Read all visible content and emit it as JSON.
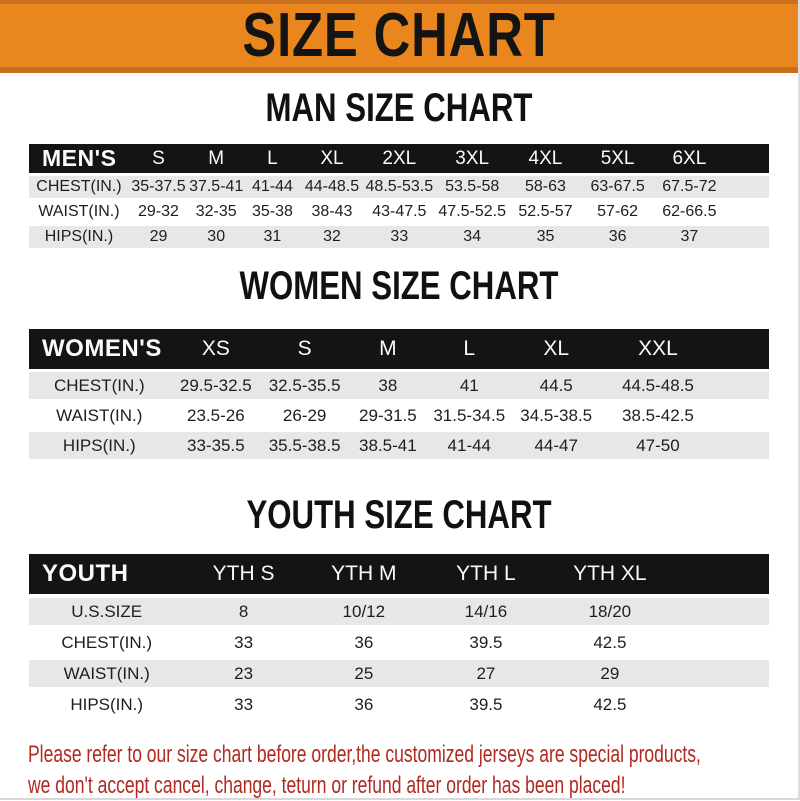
{
  "banner": {
    "title": "SIZE CHART"
  },
  "colors": {
    "banner_bg": "#EA861E",
    "banner_edge": "#C96F1E",
    "header_bar": "#141414",
    "row_gray": "#E7E7E7",
    "footer_red": "#B02A22"
  },
  "sections": [
    {
      "id": "men",
      "heading": "MAN SIZE CHART",
      "table": {
        "header": [
          "MEN'S",
          "S",
          "M",
          "L",
          "XL",
          "2XL",
          "3XL",
          "4XL",
          "5XL",
          "6XL"
        ],
        "rows": [
          [
            "CHEST(IN.)",
            "35-37.5",
            "37.5-41",
            "41-44",
            "44-48.5",
            "48.5-53.5",
            "53.5-58",
            "58-63",
            "63-67.5",
            "67.5-72"
          ],
          [
            "WAIST(IN.)",
            "29-32",
            "32-35",
            "35-38",
            "38-43",
            "43-47.5",
            "47.5-52.5",
            "52.5-57",
            "57-62",
            "62-66.5"
          ],
          [
            "HIPS(IN.)",
            "29",
            "30",
            "31",
            "32",
            "33",
            "34",
            "35",
            "36",
            "37"
          ]
        ]
      }
    },
    {
      "id": "women",
      "heading": "WOMEN SIZE CHART",
      "table": {
        "header": [
          "WOMEN'S",
          "XS",
          "S",
          "M",
          "L",
          "XL",
          "XXL"
        ],
        "rows": [
          [
            "CHEST(IN.)",
            "29.5-32.5",
            "32.5-35.5",
            "38",
            "41",
            "44.5",
            "44.5-48.5"
          ],
          [
            "WAIST(IN.)",
            "23.5-26",
            "26-29",
            "29-31.5",
            "31.5-34.5",
            "34.5-38.5",
            "38.5-42.5"
          ],
          [
            "HIPS(IN.)",
            "33-35.5",
            "35.5-38.5",
            "38.5-41",
            "41-44",
            "44-47",
            "47-50"
          ]
        ]
      }
    },
    {
      "id": "youth",
      "heading": "YOUTH SIZE CHART",
      "table": {
        "header": [
          "YOUTH",
          "YTH S",
          "YTH M",
          "YTH L",
          "YTH XL"
        ],
        "rows": [
          [
            "U.S.SIZE",
            "8",
            "10/12",
            "14/16",
            "18/20"
          ],
          [
            "CHEST(IN.)",
            "33",
            "36",
            "39.5",
            "42.5"
          ],
          [
            "WAIST(IN.)",
            "23",
            "25",
            "27",
            "29"
          ],
          [
            "HIPS(IN.)",
            "33",
            "36",
            "39.5",
            "42.5"
          ]
        ]
      }
    }
  ],
  "footer": {
    "lines": [
      "Please refer to our size chart before order,the customized jerseys are special products,",
      "we don't accept cancel, change, teturn or refund after order has been placed!"
    ]
  }
}
